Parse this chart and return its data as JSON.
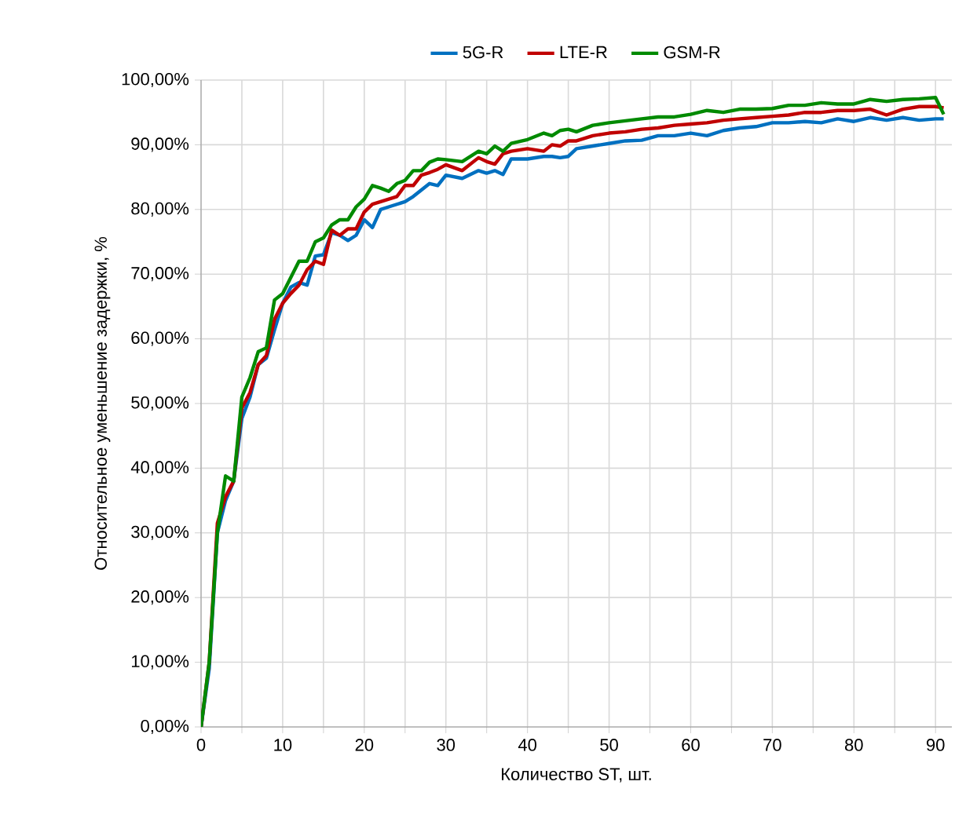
{
  "chart_data": {
    "type": "line",
    "xlabel": "Количество ST, шт.",
    "ylabel": "Относительное уменьшение задержки, %",
    "xlim": [
      0,
      92
    ],
    "ylim": [
      0,
      100
    ],
    "xticks": [
      0,
      {
        "value": 5,
        "label": null
      },
      10,
      {
        "value": 15,
        "label": null
      },
      20,
      {
        "value": 25,
        "label": null
      },
      30,
      {
        "value": 35,
        "label": null
      },
      40,
      {
        "value": 45,
        "label": null
      },
      50,
      {
        "value": 55,
        "label": null
      },
      60,
      {
        "value": 65,
        "label": null
      },
      70,
      {
        "value": 75,
        "label": null
      },
      80,
      {
        "value": 85,
        "label": null
      },
      90
    ],
    "yticks": [
      {
        "value": 0,
        "label": "0,00%"
      },
      {
        "value": 10,
        "label": "10,00%"
      },
      {
        "value": 20,
        "label": "20,00%"
      },
      {
        "value": 30,
        "label": "30,00%"
      },
      {
        "value": 40,
        "label": "40,00%"
      },
      {
        "value": 50,
        "label": "50,00%"
      },
      {
        "value": 60,
        "label": "60,00%"
      },
      {
        "value": 70,
        "label": "70,00%"
      },
      {
        "value": 80,
        "label": "80,00%"
      },
      {
        "value": 90,
        "label": "90,00%"
      },
      {
        "value": 100,
        "label": "100,00%"
      }
    ],
    "grid": true,
    "legend": "top",
    "marker": "none",
    "line_style": "solid",
    "x": [
      0,
      1,
      2,
      3,
      4,
      5,
      6,
      7,
      8,
      9,
      10,
      11,
      12,
      13,
      14,
      15,
      16,
      17,
      18,
      19,
      20,
      21,
      22,
      23,
      24,
      25,
      26,
      27,
      28,
      29,
      30,
      32,
      34,
      35,
      36,
      37,
      38,
      40,
      42,
      43,
      44,
      45,
      46,
      48,
      50,
      52,
      54,
      56,
      58,
      60,
      62,
      64,
      66,
      68,
      70,
      72,
      74,
      76,
      78,
      80,
      82,
      84,
      86,
      88,
      90,
      91
    ],
    "series": [
      {
        "name": "5G-R",
        "color": "#0070c0",
        "values": [
          0,
          9,
          30,
          35,
          38,
          47.7,
          51,
          56,
          57,
          61.4,
          65.5,
          68,
          68.7,
          68.3,
          72.8,
          73,
          76.4,
          76,
          75.2,
          76,
          78.4,
          77.2,
          80,
          80.4,
          80.8,
          81.2,
          82,
          83,
          84,
          83.7,
          85.3,
          84.8,
          86,
          85.6,
          86,
          85.4,
          87.8,
          87.8,
          88.2,
          88.2,
          88,
          88.2,
          89.4,
          89.8,
          90.2,
          90.6,
          90.7,
          91.4,
          91.4,
          91.8,
          91.4,
          92.2,
          92.6,
          92.8,
          93.4,
          93.4,
          93.6,
          93.4,
          94,
          93.6,
          94.2,
          93.8,
          94.2,
          93.8,
          94,
          94
        ]
      },
      {
        "name": "LTE-R",
        "color": "#c00000",
        "values": [
          0,
          10,
          31.5,
          35.6,
          38,
          49.3,
          51.7,
          56,
          57.4,
          63,
          65.5,
          67,
          68.3,
          70.7,
          72,
          71.5,
          76.8,
          76,
          77,
          77,
          79.6,
          80.8,
          81.2,
          81.6,
          82,
          83.7,
          83.7,
          85.3,
          85.7,
          86.2,
          86.9,
          86,
          88,
          87.4,
          87,
          88.6,
          89,
          89.4,
          89,
          90,
          89.8,
          90.6,
          90.6,
          91.4,
          91.8,
          92,
          92.4,
          92.6,
          93,
          93.2,
          93.4,
          93.8,
          94,
          94.2,
          94.4,
          94.6,
          95,
          95,
          95.3,
          95.3,
          95.5,
          94.6,
          95.5,
          95.9,
          95.9,
          95.7
        ]
      },
      {
        "name": "GSM-R",
        "color": "#008a00",
        "values": [
          0,
          10,
          30,
          38.8,
          38,
          51,
          54,
          58,
          58.6,
          66,
          67,
          69.5,
          72,
          72,
          75,
          75.6,
          77.6,
          78.4,
          78.4,
          80.4,
          81.6,
          83.7,
          83.3,
          82.8,
          84,
          84.5,
          86,
          86,
          87.3,
          87.8,
          87.7,
          87.4,
          89,
          88.6,
          89.8,
          89,
          90.2,
          90.8,
          91.8,
          91.4,
          92.2,
          92.4,
          92,
          93,
          93.4,
          93.7,
          94,
          94.3,
          94.3,
          94.7,
          95.3,
          95,
          95.5,
          95.5,
          95.6,
          96.1,
          96.1,
          96.5,
          96.3,
          96.3,
          97,
          96.7,
          97,
          97.1,
          97.3,
          94.7
        ]
      }
    ]
  }
}
